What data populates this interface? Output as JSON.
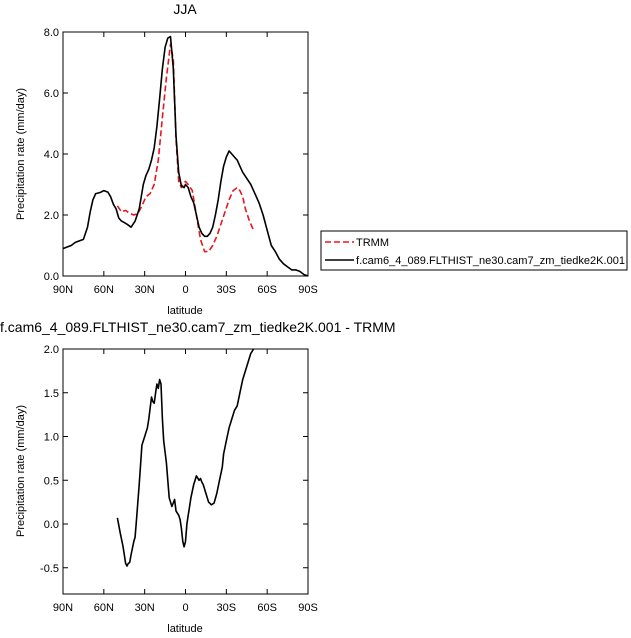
{
  "colors": {
    "trmm": "#e8171d",
    "model": "#000000",
    "axes": "#000000"
  },
  "chart_data": [
    {
      "type": "line",
      "title": "JJA",
      "xlabel": "latitude",
      "ylabel": "Precipitation rate (mm/day)",
      "xlim": [
        90,
        -90
      ],
      "ylim": [
        0,
        8
      ],
      "grid": false,
      "legend_position": "right",
      "x_ticks": [
        90,
        60,
        30,
        0,
        -30,
        -60,
        -90
      ],
      "x_tick_labels": [
        "90N",
        "60N",
        "30N",
        "0",
        "30S",
        "60S",
        "90S"
      ],
      "y_ticks": [
        0,
        2,
        4,
        6,
        8
      ],
      "y_tick_labels": [
        "0.0",
        "2.0",
        "4.0",
        "6.0",
        "8.0"
      ],
      "series": [
        {
          "name": "TRMM",
          "style": "dashed",
          "x": [
            50,
            47,
            44,
            41,
            38,
            35,
            32,
            29,
            26,
            23,
            20,
            17,
            14,
            11,
            9,
            7,
            5,
            3,
            1,
            0,
            -2,
            -5,
            -8,
            -11,
            -14,
            -17,
            -20,
            -23,
            -26,
            -29,
            -32,
            -35,
            -38,
            -40,
            -42,
            -44,
            -47,
            -50
          ],
          "y": [
            2.3,
            2.1,
            2.15,
            2.05,
            2.0,
            2.05,
            2.3,
            2.6,
            2.7,
            3.0,
            3.8,
            5.2,
            6.5,
            7.6,
            7.1,
            4.5,
            3.1,
            2.9,
            3.05,
            3.1,
            3.0,
            2.8,
            2.0,
            1.2,
            0.8,
            0.8,
            1.0,
            1.3,
            1.7,
            2.1,
            2.5,
            2.8,
            2.9,
            2.8,
            2.6,
            2.2,
            1.8,
            1.5
          ]
        },
        {
          "name": "f.cam6_4_089.FLTHIST_ne30.cam7_zm_tiedke2K.001",
          "style": "solid",
          "x": [
            90,
            87,
            84,
            81,
            78,
            75,
            72,
            70,
            68,
            66,
            64,
            62,
            60,
            57,
            55,
            53,
            51,
            49,
            47,
            45,
            43,
            40,
            37,
            34,
            31,
            29,
            27,
            25,
            23,
            21,
            19,
            17,
            15,
            13,
            11,
            9,
            7,
            5,
            3,
            1,
            0,
            -2,
            -4,
            -6,
            -8,
            -10,
            -12,
            -14,
            -16,
            -18,
            -20,
            -22,
            -24,
            -26,
            -28,
            -30,
            -32,
            -34,
            -36,
            -38,
            -40,
            -42,
            -45,
            -48,
            -51,
            -54,
            -57,
            -60,
            -63,
            -66,
            -69,
            -72,
            -75,
            -78,
            -81,
            -84,
            -87,
            -90
          ],
          "y": [
            0.9,
            0.95,
            1.0,
            1.1,
            1.15,
            1.2,
            1.6,
            2.1,
            2.5,
            2.7,
            2.72,
            2.75,
            2.8,
            2.75,
            2.6,
            2.35,
            2.2,
            1.9,
            1.8,
            1.75,
            1.7,
            1.6,
            1.8,
            2.2,
            3.0,
            3.3,
            3.5,
            3.8,
            4.2,
            4.9,
            5.8,
            6.8,
            7.5,
            7.8,
            7.85,
            6.8,
            4.6,
            3.4,
            2.95,
            2.9,
            3.0,
            2.9,
            2.6,
            2.4,
            2.0,
            1.6,
            1.4,
            1.3,
            1.3,
            1.4,
            1.6,
            2.0,
            2.5,
            3.1,
            3.6,
            3.9,
            4.1,
            4.0,
            3.9,
            3.8,
            3.6,
            3.4,
            3.2,
            3.0,
            2.7,
            2.4,
            2.0,
            1.5,
            1.0,
            0.8,
            0.55,
            0.4,
            0.3,
            0.2,
            0.2,
            0.15,
            0.05,
            0.0
          ]
        }
      ]
    },
    {
      "type": "line",
      "title": "f.cam6_4_089.FLTHIST_ne30.cam7_zm_tiedke2K.001 - TRMM",
      "xlabel": "latitude",
      "ylabel": "Precipitation rate (mm/day)",
      "xlim": [
        90,
        -90
      ],
      "ylim": [
        -0.8,
        2.0
      ],
      "grid": false,
      "x_ticks": [
        90,
        60,
        30,
        0,
        -30,
        -60,
        -90
      ],
      "x_tick_labels": [
        "90N",
        "60N",
        "30N",
        "0",
        "30S",
        "60S",
        "90S"
      ],
      "y_ticks": [
        -0.5,
        0.0,
        0.5,
        1.0,
        1.5,
        2.0
      ],
      "y_tick_labels": [
        "-0.5",
        "0.0",
        "0.5",
        "1.0",
        "1.5",
        "2.0"
      ],
      "series": [
        {
          "style": "solid",
          "x": [
            50,
            48,
            46,
            45,
            44,
            43,
            42,
            41,
            40,
            38,
            37,
            36,
            34,
            32,
            30,
            28,
            27,
            25,
            24,
            23,
            22,
            21,
            20,
            19,
            18,
            17,
            16,
            14,
            12,
            10,
            8,
            7,
            5,
            4,
            3,
            2,
            1,
            0,
            -1,
            -2,
            -3,
            -4,
            -6,
            -8,
            -10,
            -11,
            -12,
            -13,
            -15,
            -17,
            -19,
            -21,
            -23,
            -25,
            -27,
            -28,
            -30,
            -32,
            -34,
            -36,
            -38,
            -40,
            -42,
            -44,
            -46,
            -48,
            -50
          ],
          "y": [
            0.07,
            -0.1,
            -0.25,
            -0.35,
            -0.45,
            -0.48,
            -0.45,
            -0.44,
            -0.35,
            -0.2,
            -0.15,
            0.05,
            0.45,
            0.9,
            1.0,
            1.1,
            1.2,
            1.45,
            1.4,
            1.38,
            1.5,
            1.6,
            1.55,
            1.65,
            1.6,
            1.2,
            0.95,
            0.7,
            0.3,
            0.2,
            0.28,
            0.15,
            0.1,
            0.05,
            -0.05,
            -0.2,
            -0.26,
            -0.2,
            0.0,
            0.1,
            0.2,
            0.3,
            0.45,
            0.55,
            0.5,
            0.52,
            0.48,
            0.45,
            0.35,
            0.25,
            0.22,
            0.24,
            0.35,
            0.5,
            0.65,
            0.8,
            0.95,
            1.1,
            1.2,
            1.3,
            1.35,
            1.5,
            1.65,
            1.75,
            1.85,
            1.95,
            2.0
          ]
        }
      ]
    }
  ]
}
